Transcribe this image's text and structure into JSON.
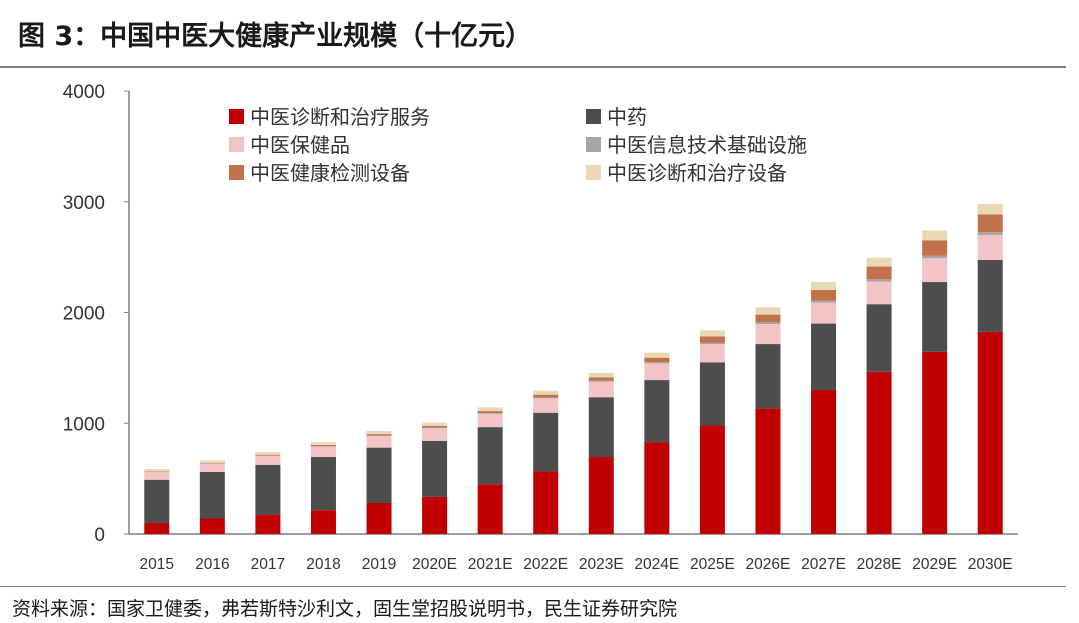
{
  "title": "图 3：中国中医大健康产业规模（十亿元）",
  "source": "资料来源：国家卫健委，弗若斯特沙利文，固生堂招股说明书，民生证券研究院",
  "chart_data": {
    "type": "bar",
    "stacked": true,
    "title": "图 3：中国中医大健康产业规模（十亿元）",
    "xlabel": "",
    "ylabel": "",
    "ylim": [
      0,
      4000
    ],
    "yticks": [
      0,
      1000,
      2000,
      3000,
      4000
    ],
    "grid": false,
    "legend_position": "top",
    "categories": [
      "2015",
      "2016",
      "2017",
      "2018",
      "2019",
      "2020E",
      "2021E",
      "2022E",
      "2023E",
      "2024E",
      "2025E",
      "2026E",
      "2027E",
      "2028E",
      "2029E",
      "2030E"
    ],
    "series": [
      {
        "name": "中医诊断和治疗服务",
        "color": "#c00000",
        "values": [
          100,
          140,
          175,
          215,
          280,
          335,
          450,
          565,
          695,
          830,
          980,
          1135,
          1300,
          1465,
          1645,
          1825
        ]
      },
      {
        "name": "中药",
        "color": "#4d4d4d",
        "values": [
          390,
          420,
          450,
          480,
          500,
          505,
          515,
          530,
          540,
          560,
          570,
          580,
          600,
          610,
          630,
          650
        ]
      },
      {
        "name": "中医保健品",
        "color": "#f2c4c6",
        "values": [
          70,
          75,
          80,
          95,
          105,
          115,
          120,
          130,
          140,
          150,
          165,
          180,
          190,
          205,
          215,
          225
        ]
      },
      {
        "name": "中医信息技术基础设施",
        "color": "#a6a6a6",
        "values": [
          2,
          3,
          3,
          4,
          5,
          6,
          7,
          8,
          10,
          12,
          14,
          16,
          18,
          20,
          22,
          25
        ]
      },
      {
        "name": "中医健康检测设备",
        "color": "#c0734a",
        "values": [
          5,
          6,
          8,
          10,
          12,
          15,
          18,
          25,
          30,
          40,
          55,
          70,
          95,
          115,
          140,
          160
        ]
      },
      {
        "name": "中医诊断和治疗设备",
        "color": "#ead7b5",
        "values": [
          20,
          22,
          24,
          26,
          28,
          30,
          33,
          36,
          40,
          45,
          55,
          65,
          72,
          80,
          88,
          95
        ]
      }
    ]
  }
}
